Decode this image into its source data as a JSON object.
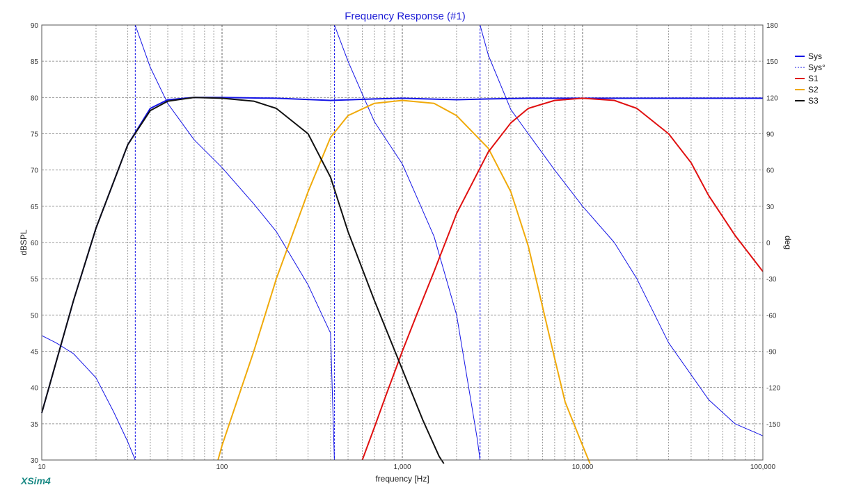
{
  "chart_data": {
    "type": "line",
    "title": "Frequency Response (#1)",
    "xlabel": "frequency [Hz]",
    "ylabel": "dBSPL",
    "y2label": "deg",
    "xscale": "log",
    "xlim": [
      10,
      100000
    ],
    "ylim": [
      30,
      90
    ],
    "y2lim": [
      -180,
      180
    ],
    "x_ticks": [
      {
        "value": 10,
        "label": "10"
      },
      {
        "value": 100,
        "label": "100"
      },
      {
        "value": 1000,
        "label": "1,000"
      },
      {
        "value": 10000,
        "label": "10,000"
      },
      {
        "value": 100000,
        "label": "100,000"
      }
    ],
    "y_ticks": [
      {
        "value": 30,
        "label": "30"
      },
      {
        "value": 35,
        "label": "35"
      },
      {
        "value": 40,
        "label": "40"
      },
      {
        "value": 45,
        "label": "45"
      },
      {
        "value": 50,
        "label": "50"
      },
      {
        "value": 55,
        "label": "55"
      },
      {
        "value": 60,
        "label": "60"
      },
      {
        "value": 65,
        "label": "65"
      },
      {
        "value": 70,
        "label": "70"
      },
      {
        "value": 75,
        "label": "75"
      },
      {
        "value": 80,
        "label": "80"
      },
      {
        "value": 85,
        "label": "85"
      },
      {
        "value": 90,
        "label": "90"
      }
    ],
    "y2_ticks": [
      {
        "value": 180,
        "label": "180"
      },
      {
        "value": 150,
        "label": "150"
      },
      {
        "value": 120,
        "label": "120"
      },
      {
        "value": 90,
        "label": "90"
      },
      {
        "value": 60,
        "label": "60"
      },
      {
        "value": 30,
        "label": "30"
      },
      {
        "value": 0,
        "label": "0"
      },
      {
        "value": -30,
        "label": "-30"
      },
      {
        "value": -60,
        "label": "-60"
      },
      {
        "value": -90,
        "label": "-90"
      },
      {
        "value": -120,
        "label": "-120"
      },
      {
        "value": -150,
        "label": "-150"
      }
    ],
    "series": [
      {
        "name": "Sys",
        "axis": "left",
        "color": "#1414e6",
        "style": "solid",
        "x": [
          10,
          15,
          20,
          30,
          40,
          50,
          70,
          100,
          200,
          400,
          700,
          1000,
          2000,
          3000,
          5000,
          7000,
          10000,
          20000,
          50000,
          100000
        ],
        "y": [
          36.5,
          52,
          62,
          73.5,
          78.5,
          79.7,
          80,
          80,
          79.9,
          79.6,
          79.8,
          79.9,
          79.7,
          79.8,
          79.9,
          79.9,
          79.9,
          79.9,
          79.9,
          79.9
        ]
      },
      {
        "name": "Sys°",
        "axis": "right",
        "color": "#1414e6",
        "style": "dashed",
        "x": [
          10,
          12,
          15,
          20,
          25,
          30,
          33,
          33.01,
          40,
          50,
          70,
          100,
          150,
          200,
          300,
          400,
          420,
          420.01,
          500,
          700,
          1000,
          1500,
          2000,
          2600,
          2700,
          2700.01,
          3000,
          4000,
          5000,
          7000,
          10000,
          15000,
          20000,
          30000,
          50000,
          70000,
          100000
        ],
        "y": [
          -77,
          -83,
          -92,
          -112,
          -140,
          -165,
          -180,
          180,
          145,
          115,
          85,
          62,
          32,
          9,
          -35,
          -75,
          -180,
          180,
          150,
          100,
          65,
          5,
          -60,
          -162,
          -180,
          180,
          155,
          110,
          90,
          60,
          30,
          0,
          -30,
          -83,
          -130,
          -150,
          -160
        ]
      },
      {
        "name": "S1",
        "axis": "left",
        "color": "#e01010",
        "style": "solid",
        "x": [
          600,
          700,
          800,
          1000,
          1200,
          1500,
          2000,
          3000,
          4000,
          5000,
          7000,
          10000,
          15000,
          20000,
          30000,
          40000,
          50000,
          70000,
          100000
        ],
        "y": [
          30,
          34.5,
          38.5,
          45,
          50,
          56,
          64,
          72.5,
          76.5,
          78.5,
          79.6,
          79.9,
          79.6,
          78.5,
          75,
          71,
          66.5,
          61,
          56
        ]
      },
      {
        "name": "S2",
        "axis": "left",
        "color": "#f0aa0a",
        "style": "solid",
        "x": [
          95,
          100,
          150,
          200,
          300,
          400,
          500,
          700,
          1000,
          1500,
          2000,
          3000,
          4000,
          5000,
          7000,
          8000,
          10000,
          11000
        ],
        "y": [
          30,
          32,
          45,
          55,
          67,
          74.5,
          77.5,
          79.2,
          79.6,
          79.2,
          77.5,
          73,
          67,
          59.5,
          44,
          38,
          32,
          29.5
        ]
      },
      {
        "name": "S3",
        "axis": "left",
        "color": "#111111",
        "style": "solid",
        "x": [
          10,
          15,
          20,
          30,
          40,
          50,
          70,
          100,
          150,
          200,
          300,
          400,
          500,
          700,
          1000,
          1300,
          1600,
          1700
        ],
        "y": [
          36.5,
          52,
          62,
          73.5,
          78.2,
          79.5,
          80,
          79.9,
          79.5,
          78.5,
          75,
          69,
          61.5,
          52,
          42.5,
          35.5,
          30.5,
          29.5
        ]
      }
    ]
  },
  "legend": [
    {
      "label": "Sys",
      "color": "#1414e6",
      "style": "solid"
    },
    {
      "label": "Sys°",
      "color": "#1414e6",
      "style": "dashed"
    },
    {
      "label": "S1",
      "color": "#e01010",
      "style": "solid"
    },
    {
      "label": "S2",
      "color": "#f0aa0a",
      "style": "solid"
    },
    {
      "label": "S3",
      "color": "#111111",
      "style": "solid"
    }
  ],
  "brand": "XSim4"
}
